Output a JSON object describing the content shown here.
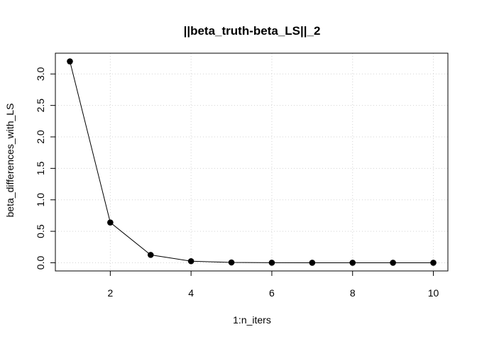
{
  "chart_data": {
    "type": "line",
    "title": "||beta_truth-beta_LS||_2",
    "xlabel": "1:n_iters",
    "ylabel": "beta_differences_with_LS",
    "x": [
      1,
      2,
      3,
      4,
      5,
      6,
      7,
      8,
      9,
      10
    ],
    "series": [
      {
        "values": [
          3.2,
          0.64,
          0.125,
          0.025,
          0.005,
          0.001,
          0.0002,
          4e-05,
          1e-05,
          2e-06
        ]
      }
    ],
    "xlim": [
      0.64,
      10.36
    ],
    "ylim": [
      -0.13,
      3.33
    ],
    "x_ticks": [
      2,
      4,
      6,
      8,
      10
    ],
    "y_ticks": [
      0.0,
      0.5,
      1.0,
      1.5,
      2.0,
      2.5,
      3.0
    ],
    "x_tick_labels": [
      "2",
      "4",
      "6",
      "8",
      "10"
    ],
    "y_tick_labels": [
      "0.0",
      "0.5",
      "1.0",
      "1.5",
      "2.0",
      "2.5",
      "3.0"
    ],
    "grid": true,
    "grid_style": "dotted",
    "marker": "filled-circle",
    "line_color": "#000000",
    "grid_color": "#d3d3d3"
  }
}
